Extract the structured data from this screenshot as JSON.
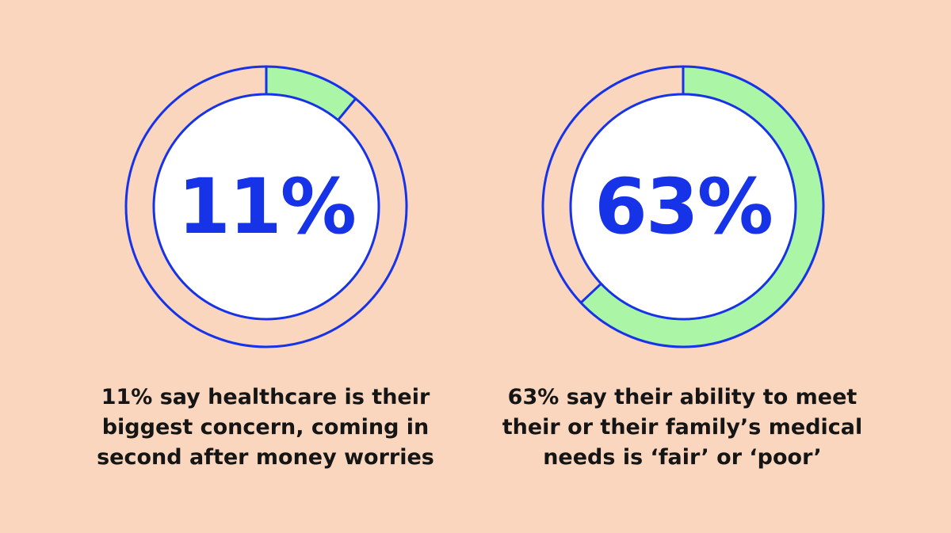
{
  "colors": {
    "background": "#f9d6bd",
    "ring": "#1733e8",
    "fill": "#aaf5a6",
    "inner": "#ffffff",
    "caption": "#151515"
  },
  "chart_data": [
    {
      "type": "pie",
      "value": 11,
      "max": 100,
      "label": "11%",
      "caption": "11% say healthcare is their biggest concern, coming in second after money worries"
    },
    {
      "type": "pie",
      "value": 63,
      "max": 100,
      "label": "63%",
      "caption": "63% say their ability to meet their or their family’s medical needs is ‘fair’ or ‘poor’"
    }
  ]
}
